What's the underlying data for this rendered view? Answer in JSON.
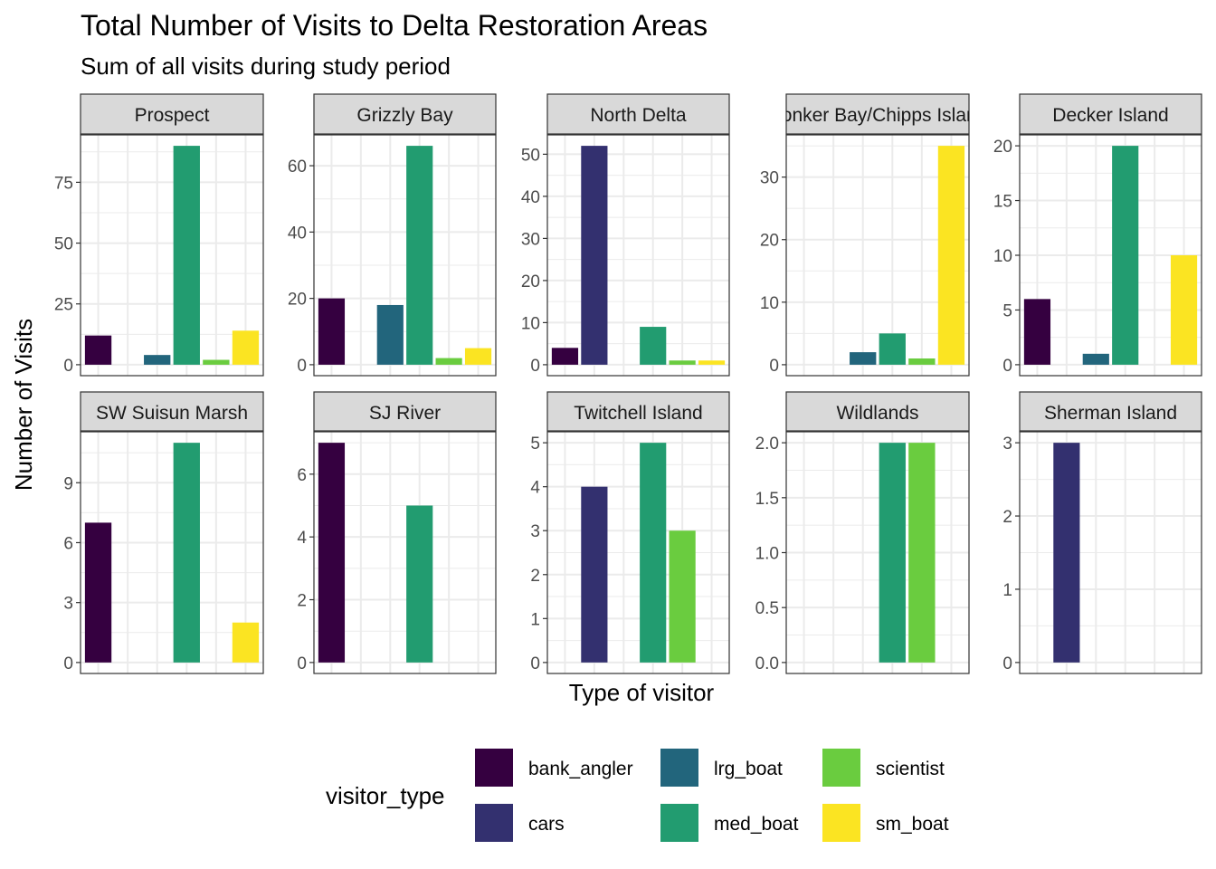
{
  "chart_data": {
    "type": "bar",
    "title": "Total Number of Visits to Delta Restoration Areas",
    "subtitle": "Sum of all visits during study period",
    "xlabel": "Type of visitor",
    "ylabel": "Number of Visits",
    "legend": {
      "title": "visitor_type",
      "placement": "bottom"
    },
    "grid": true,
    "facet_scales": "free_y",
    "categories": [
      "bank_angler",
      "cars",
      "lrg_boat",
      "med_boat",
      "scientist",
      "sm_boat"
    ],
    "colors": [
      "#350040",
      "#33306f",
      "#22657c",
      "#229c70",
      "#6acc3f",
      "#fbe422"
    ],
    "panels": [
      {
        "name": "Prospect",
        "values": [
          12,
          0,
          4,
          90,
          2,
          14
        ],
        "yticks": [
          "0",
          "25",
          "50",
          "75"
        ]
      },
      {
        "name": "Grizzly Bay",
        "values": [
          20,
          0,
          18,
          66,
          2,
          5
        ],
        "yticks": [
          "0",
          "20",
          "40",
          "60"
        ]
      },
      {
        "name": "North Delta",
        "values": [
          4,
          52,
          0,
          9,
          1,
          1
        ],
        "yticks": [
          "0",
          "10",
          "20",
          "30",
          "40",
          "50"
        ]
      },
      {
        "name": "Honker Bay/Chipps Island",
        "values": [
          0,
          0,
          2,
          5,
          1,
          35
        ],
        "yticks": [
          "0",
          "10",
          "20",
          "30"
        ]
      },
      {
        "name": "Decker Island",
        "values": [
          6,
          0,
          1,
          20,
          0,
          10
        ],
        "yticks": [
          "0",
          "5",
          "10",
          "15",
          "20"
        ]
      },
      {
        "name": "SW Suisun Marsh",
        "values": [
          7,
          0,
          0,
          11,
          0,
          2
        ],
        "yticks": [
          "0",
          "3",
          "6",
          "9"
        ]
      },
      {
        "name": "SJ River",
        "values": [
          7,
          0,
          0,
          5,
          0,
          0
        ],
        "yticks": [
          "0",
          "2",
          "4",
          "6"
        ]
      },
      {
        "name": "Twitchell Island",
        "values": [
          0,
          4,
          0,
          5,
          3,
          0
        ],
        "yticks": [
          "0",
          "1",
          "2",
          "3",
          "4",
          "5"
        ]
      },
      {
        "name": "Wildlands",
        "values": [
          0,
          0,
          0,
          2,
          2,
          0
        ],
        "yticks": [
          "0.0",
          "0.5",
          "1.0",
          "1.5",
          "2.0"
        ]
      },
      {
        "name": "Sherman Island",
        "values": [
          0,
          3,
          0,
          0,
          0,
          0
        ],
        "yticks": [
          "0",
          "1",
          "2",
          "3"
        ]
      }
    ]
  }
}
